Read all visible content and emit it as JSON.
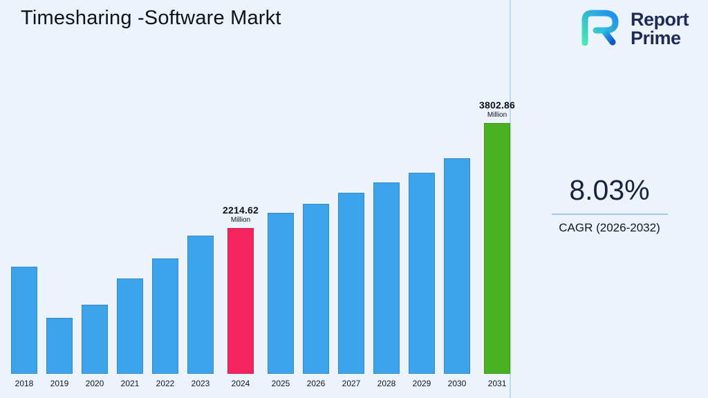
{
  "header": {
    "title": "Timesharing -Software Markt"
  },
  "logo": {
    "line1": "Report",
    "line2": "Prime"
  },
  "cagr": {
    "value": "8.03%",
    "label": "CAGR (2026-2032)"
  },
  "chart_data": {
    "type": "bar",
    "title": "Timesharing -Software Markt",
    "unit": "Million",
    "categories": [
      "2018",
      "2019",
      "2020",
      "2021",
      "2022",
      "2023",
      "2024",
      "2025",
      "2026",
      "2027",
      "2028",
      "2029",
      "2030",
      "2031"
    ],
    "values": [
      1620,
      850,
      1050,
      1450,
      1750,
      2100,
      2214.62,
      2440,
      2580,
      2740,
      2900,
      3050,
      3270,
      3802.86
    ],
    "value_precision_note": "Only 2024 and 2031 carry data labels in the image; other values estimated from bar heights",
    "annotations": [
      {
        "category": "2024",
        "value": "2214.62",
        "unit": "Million"
      },
      {
        "category": "2031",
        "value": "3802.86",
        "unit": "Million"
      }
    ],
    "bar_colors": {
      "default": "#3da3ea",
      "2024": "#f5245f",
      "2031": "#4cb122"
    },
    "xlabel": "",
    "ylabel": "",
    "ylim": [
      0,
      4000
    ],
    "grid": false,
    "legend": false,
    "axis_lines": false
  },
  "colors": {
    "background": "#edf3fb",
    "divider": "#bcd8f2",
    "bar_blue": "#3da3ea",
    "bar_pink": "#f5245f",
    "bar_green": "#4cb122",
    "logo_navy": "#1e2b59"
  }
}
